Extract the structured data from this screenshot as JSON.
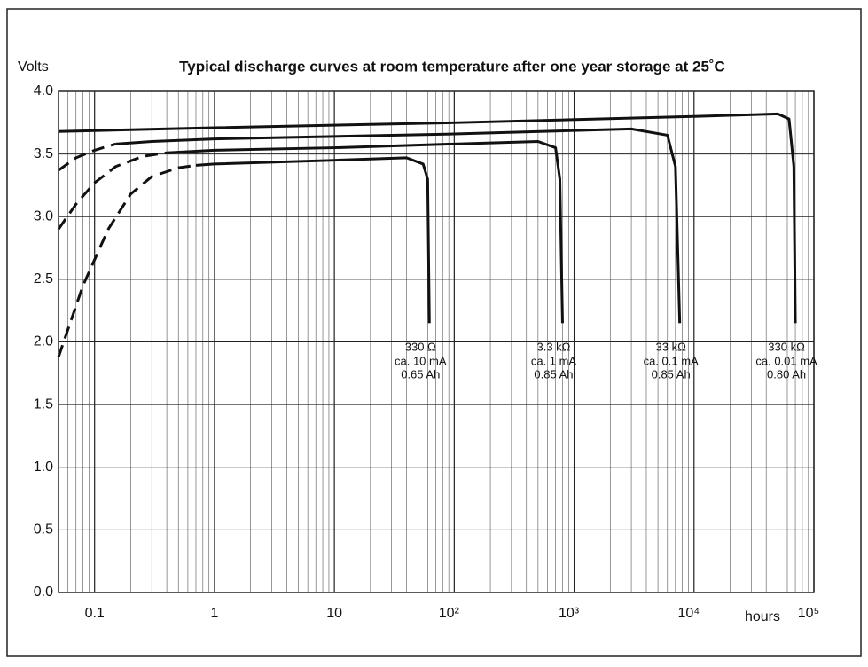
{
  "chart_data": {
    "type": "line",
    "title": "Typical discharge curves at room temperature after one year storage at 25˚C",
    "y_label": "Volts",
    "x_label": "hours",
    "log_x": true,
    "grid": true,
    "minor_grid": true,
    "xlim": [
      0.05,
      100000
    ],
    "ylim": [
      0,
      4
    ],
    "xticks": [
      0.1,
      1,
      10,
      {
        "value": 100,
        "label": "10²"
      },
      {
        "value": 1000,
        "label": "10³"
      },
      {
        "value": 10000,
        "label": "10⁴"
      },
      {
        "value": 100000,
        "label": "10⁵"
      }
    ],
    "yticks": [
      {
        "value": 0,
        "label": "0.0"
      },
      0.5,
      {
        "value": 1,
        "label": "1.0"
      },
      1.5,
      {
        "value": 2,
        "label": "2.0"
      },
      2.5,
      {
        "value": 3,
        "label": "3.0"
      },
      3.5,
      {
        "value": 4,
        "label": "4.0"
      }
    ],
    "series": [
      {
        "name": "330 Ω",
        "notes": [
          "ca. 10 mA",
          "0.65 Ah"
        ],
        "color": "#111111",
        "dashed_until": 0.7,
        "x": [
          0.05,
          0.08,
          0.13,
          0.2,
          0.3,
          0.5,
          0.7,
          1,
          10,
          40,
          55,
          60,
          62
        ],
        "values": [
          1.88,
          2.45,
          2.9,
          3.18,
          3.32,
          3.39,
          3.41,
          3.42,
          3.45,
          3.47,
          3.42,
          3.3,
          2.15
        ]
      },
      {
        "name": "3.3 kΩ",
        "notes": [
          "ca. 1 mA",
          "0.85 Ah"
        ],
        "color": "#111111",
        "dashed_until": 0.4,
        "x": [
          0.05,
          0.07,
          0.1,
          0.15,
          0.25,
          0.4,
          1,
          10,
          100,
          500,
          700,
          760,
          800
        ],
        "values": [
          2.9,
          3.1,
          3.27,
          3.4,
          3.48,
          3.51,
          3.53,
          3.55,
          3.58,
          3.6,
          3.55,
          3.3,
          2.15
        ]
      },
      {
        "name": "33 kΩ",
        "notes": [
          "ca. 0.1 mA",
          "0.85 Ah"
        ],
        "color": "#111111",
        "dashed_until": 0.15,
        "x": [
          0.05,
          0.07,
          0.1,
          0.15,
          0.3,
          1,
          100,
          3000,
          6000,
          7000,
          7600
        ],
        "values": [
          3.37,
          3.47,
          3.53,
          3.58,
          3.6,
          3.62,
          3.66,
          3.7,
          3.65,
          3.4,
          2.15
        ]
      },
      {
        "name": "330 kΩ",
        "notes": [
          "ca. 0.01 mA",
          "0.80 Ah"
        ],
        "color": "#111111",
        "x": [
          0.05,
          1,
          100,
          10000,
          50000,
          62000,
          68000,
          70000
        ],
        "values": [
          3.68,
          3.71,
          3.75,
          3.8,
          3.82,
          3.78,
          3.4,
          2.15
        ]
      }
    ]
  }
}
